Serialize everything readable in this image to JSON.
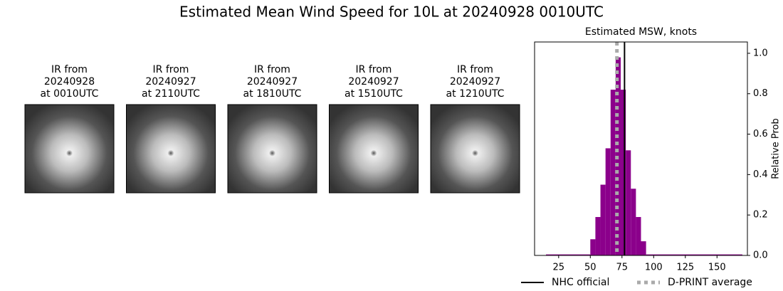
{
  "title": "Estimated Mean Wind Speed for 10L at 20240928 0010UTC",
  "panels": [
    {
      "lines": [
        "IR from",
        "20240928",
        "at 0010UTC"
      ]
    },
    {
      "lines": [
        "IR from",
        "20240927",
        "at 2110UTC"
      ]
    },
    {
      "lines": [
        "IR from",
        "20240927",
        "at 1810UTC"
      ]
    },
    {
      "lines": [
        "IR from",
        "20240927",
        "at 1510UTC"
      ]
    },
    {
      "lines": [
        "IR from",
        "20240927",
        "at 1210UTC"
      ]
    }
  ],
  "chart_data": {
    "type": "histogram",
    "title": "Estimated MSW, knots",
    "y_label": "Relative Prob",
    "yaxis_side": "right",
    "color": "#8b008b",
    "bins": [
      15,
      50,
      54,
      58,
      62,
      66,
      70,
      74,
      78,
      82,
      86,
      90,
      94,
      170
    ],
    "values": [
      0.005,
      0.08,
      0.19,
      0.35,
      0.53,
      0.82,
      0.98,
      0.82,
      0.52,
      0.33,
      0.19,
      0.07,
      0.005
    ],
    "xlim": [
      6,
      174
    ],
    "ylim": [
      0,
      1.056
    ],
    "xticks": [
      25,
      50,
      75,
      100,
      125,
      150
    ],
    "yticks": [
      {
        "value": 0,
        "label": "0.0"
      },
      {
        "value": 0.2,
        "label": "0.2"
      },
      {
        "value": 0.4,
        "label": "0.4"
      },
      {
        "value": 0.6,
        "label": "0.6"
      },
      {
        "value": 0.8,
        "label": "0.8"
      },
      {
        "value": 1.0,
        "label": "1.0"
      }
    ],
    "reference_lines": [
      {
        "name": "NHC official",
        "value": 77,
        "color": "#000000",
        "dashed": false
      },
      {
        "name": "D-PRINT average",
        "value": 71,
        "color": "#aaaaaa",
        "dashed": true
      }
    ]
  }
}
